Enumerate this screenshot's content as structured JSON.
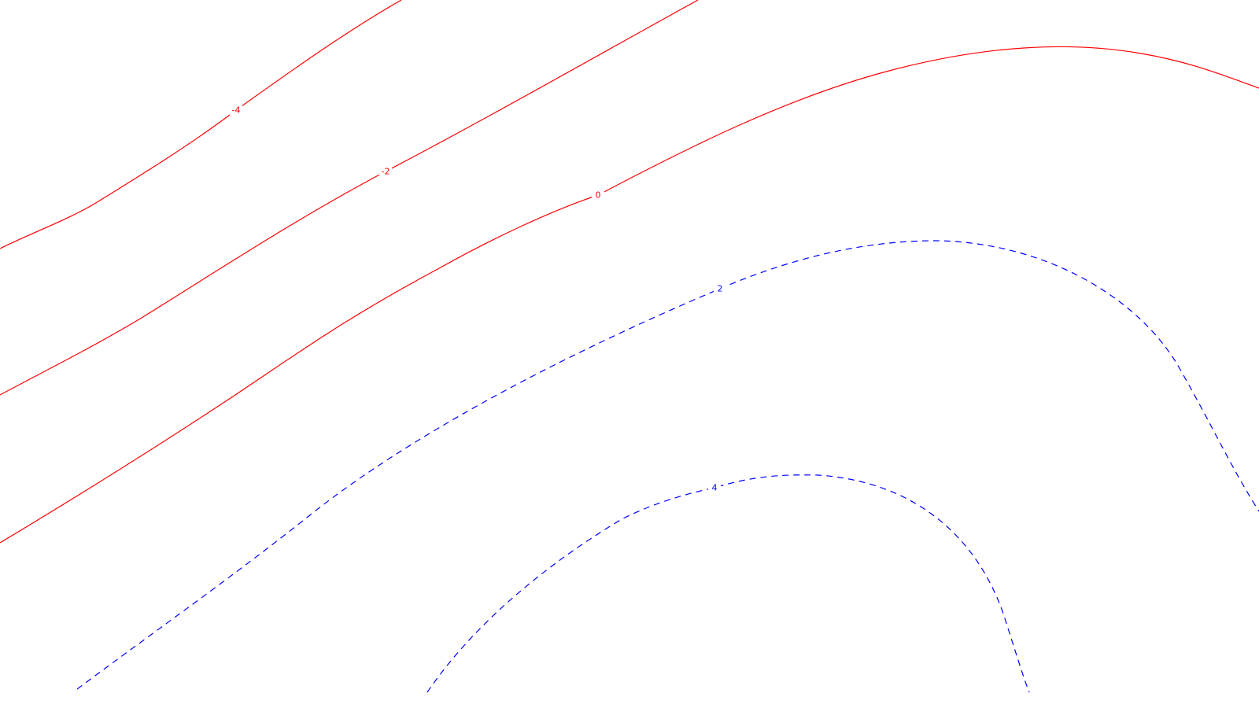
{
  "chart_data": {
    "type": "contour",
    "title": "",
    "xlabel": "",
    "ylabel": "",
    "grid": false,
    "legend": "none",
    "colors": {
      "negative_and_zero": "#ff0000",
      "positive": "#0000ff"
    },
    "levels": [
      {
        "value": -4,
        "label": "-4",
        "color": "#ff0000",
        "dashed": false
      },
      {
        "value": -2,
        "label": "-2",
        "color": "#ff0000",
        "dashed": false
      },
      {
        "value": 0,
        "label": "0",
        "color": "#ff0000",
        "dashed": false
      },
      {
        "value": 2,
        "label": "2",
        "color": "#0000ff",
        "dashed": true
      },
      {
        "value": 4,
        "label": "4",
        "color": "#0000ff",
        "dashed": true
      }
    ]
  }
}
